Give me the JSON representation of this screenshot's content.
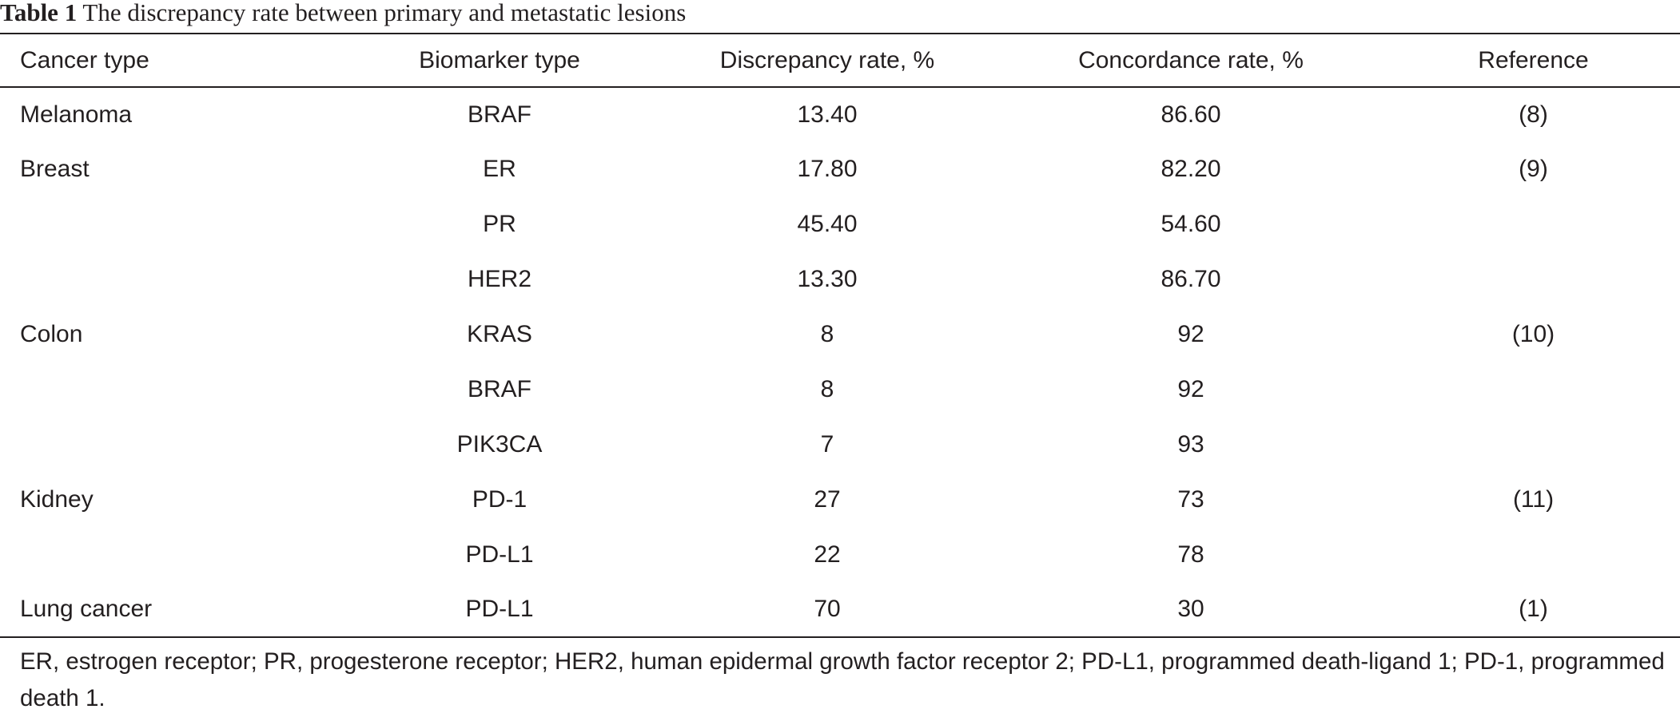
{
  "caption": {
    "label": "Table 1",
    "text": "The discrepancy rate between primary and metastatic lesions"
  },
  "table": {
    "headers": [
      "Cancer type",
      "Biomarker type",
      "Discrepancy rate, %",
      "Concordance rate, %",
      "Reference"
    ],
    "rows": [
      [
        "Melanoma",
        "BRAF",
        "13.40",
        "86.60",
        "(8)"
      ],
      [
        "Breast",
        "ER",
        "17.80",
        "82.20",
        "(9)"
      ],
      [
        "",
        "PR",
        "45.40",
        "54.60",
        ""
      ],
      [
        "",
        "HER2",
        "13.30",
        "86.70",
        ""
      ],
      [
        "Colon",
        "KRAS",
        "8",
        "92",
        "(10)"
      ],
      [
        "",
        "BRAF",
        "8",
        "92",
        ""
      ],
      [
        "",
        "PIK3CA",
        "7",
        "93",
        ""
      ],
      [
        "Kidney",
        "PD-1",
        "27",
        "73",
        "(11)"
      ],
      [
        "",
        "PD-L1",
        "22",
        "78",
        ""
      ],
      [
        "Lung cancer",
        "PD-L1",
        "70",
        "30",
        "(1)"
      ]
    ]
  },
  "footnote": "ER, estrogen receptor; PR, progesterone receptor; HER2, human epidermal growth factor receptor 2; PD-L1, programmed death-ligand 1; PD-1, programmed death 1."
}
